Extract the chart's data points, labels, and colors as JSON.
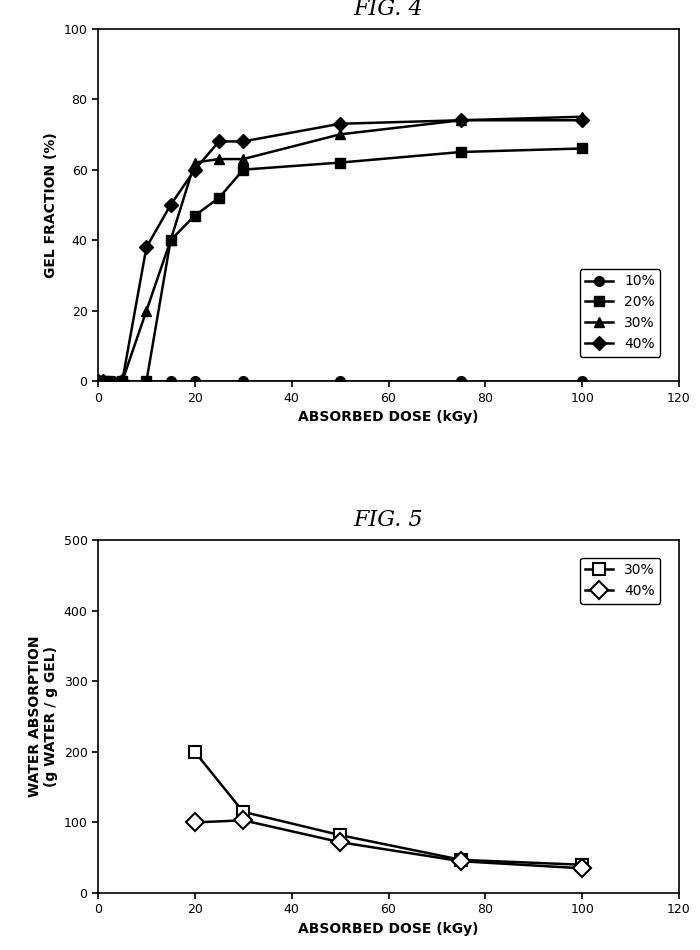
{
  "fig4": {
    "title": "FIG. 4",
    "xlabel": "ABSORBED DOSE (kGy)",
    "ylabel": "GEL FRACTION (%)",
    "xlim": [
      0,
      120
    ],
    "ylim": [
      0,
      100
    ],
    "xticks": [
      0,
      20,
      40,
      60,
      80,
      100,
      120
    ],
    "yticks": [
      0,
      20,
      40,
      60,
      80,
      100
    ],
    "series": {
      "10%": {
        "x": [
          0,
          1,
          2,
          3,
          5,
          10,
          15,
          20,
          30,
          50,
          75,
          100
        ],
        "y": [
          0,
          0,
          0,
          0,
          0,
          0,
          0,
          0,
          0,
          0,
          0,
          0
        ],
        "marker": "o",
        "label": "10%",
        "filled": true
      },
      "20%": {
        "x": [
          0,
          1,
          2,
          5,
          10,
          15,
          20,
          25,
          30,
          50,
          75,
          100
        ],
        "y": [
          0,
          0,
          0,
          0,
          0,
          40,
          47,
          52,
          60,
          62,
          65,
          66
        ],
        "marker": "s",
        "label": "20%",
        "filled": true
      },
      "30%": {
        "x": [
          0,
          1,
          5,
          10,
          15,
          20,
          25,
          30,
          50,
          75,
          100
        ],
        "y": [
          0,
          0,
          0,
          20,
          40,
          62,
          63,
          63,
          70,
          74,
          75
        ],
        "marker": "^",
        "label": "30%",
        "filled": true
      },
      "40%": {
        "x": [
          0,
          1,
          5,
          10,
          15,
          20,
          25,
          30,
          50,
          75,
          100
        ],
        "y": [
          0,
          0,
          0,
          38,
          50,
          60,
          68,
          68,
          73,
          74,
          74
        ],
        "marker": "D",
        "label": "40%",
        "filled": true
      }
    }
  },
  "fig5": {
    "title": "FIG. 5",
    "xlabel": "ABSORBED DOSE (kGy)",
    "ylabel": "WATER ABSORPTION\n(g WATER / g GEL)",
    "xlim": [
      0,
      120
    ],
    "ylim": [
      0,
      500
    ],
    "xticks": [
      0,
      20,
      40,
      60,
      80,
      100,
      120
    ],
    "yticks": [
      0,
      100,
      200,
      300,
      400,
      500
    ],
    "series": {
      "30%": {
        "x": [
          20,
          30,
          50,
          75,
          100
        ],
        "y": [
          200,
          115,
          82,
          47,
          40
        ],
        "marker": "s",
        "label": "30%",
        "filled": false
      },
      "40%": {
        "x": [
          20,
          30,
          50,
          75,
          100
        ],
        "y": [
          100,
          103,
          72,
          45,
          35
        ],
        "marker": "D",
        "label": "40%",
        "filled": false
      }
    }
  },
  "background_color": "#ffffff",
  "line_color": "#000000",
  "markersize": 7,
  "linewidth": 1.8,
  "fig_width": 7.0,
  "fig_height": 9.5
}
